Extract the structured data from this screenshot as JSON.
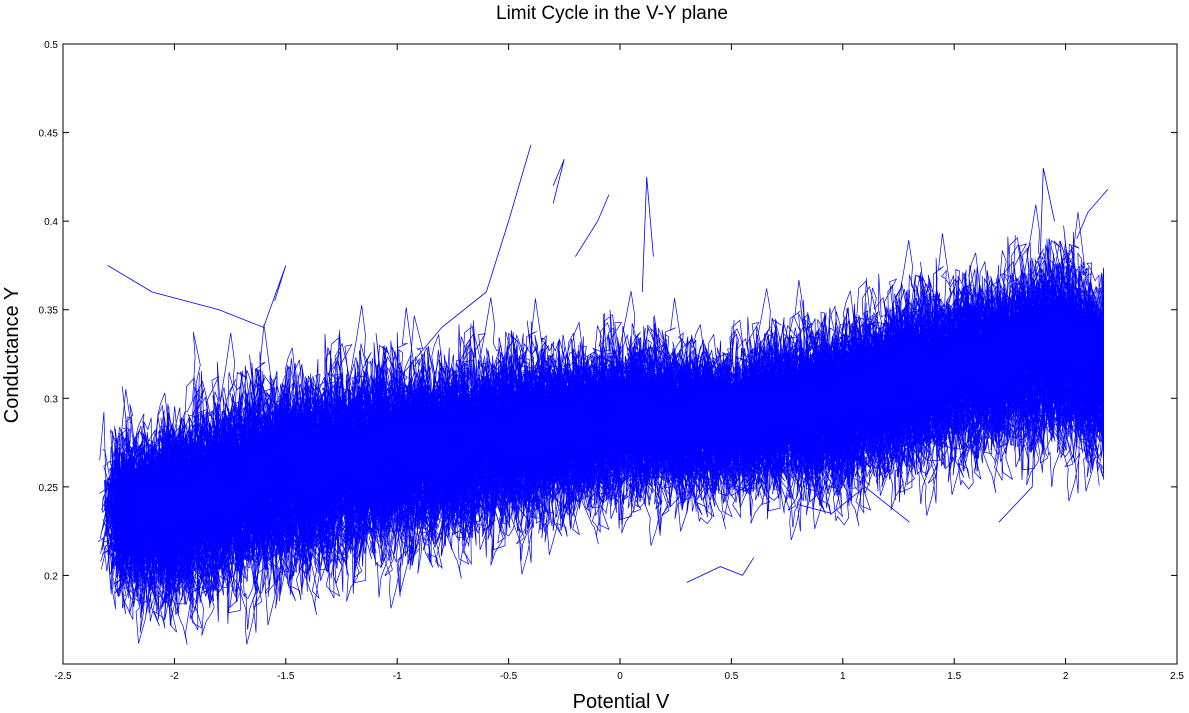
{
  "chart_data": {
    "type": "line",
    "title": "Limit Cycle in the V-Y plane",
    "xlabel": "Potential V",
    "ylabel": "Conductance Y",
    "xlim": [
      -2.5,
      2.5
    ],
    "ylim": [
      0.15,
      0.5
    ],
    "xticks": [
      "-2.5",
      "-2",
      "-1.5",
      "-1",
      "-0.5",
      "0",
      "0.5",
      "1",
      "1.5",
      "2",
      "2.5"
    ],
    "xtick_values": [
      -2.5,
      -2,
      -1.5,
      -1,
      -0.5,
      0,
      0.5,
      1,
      1.5,
      2,
      2.5
    ],
    "yticks": [
      "0.2",
      "0.25",
      "0.3",
      "0.35",
      "0.4",
      "0.45",
      "0.5"
    ],
    "ytick_values": [
      0.2,
      0.25,
      0.3,
      0.35,
      0.4,
      0.45,
      0.5
    ],
    "grid": false,
    "series": [
      {
        "color": "#0000ff",
        "description_points": {
          "x": [
            -2.3,
            -2.0,
            -1.5,
            -1.0,
            -0.5,
            0.0,
            0.5,
            1.0,
            1.5,
            2.0,
            2.15
          ],
          "y_center": [
            0.235,
            0.24,
            0.26,
            0.27,
            0.28,
            0.29,
            0.29,
            0.3,
            0.32,
            0.33,
            0.32
          ],
          "y_spread": [
            0.06,
            0.065,
            0.07,
            0.065,
            0.06,
            0.055,
            0.05,
            0.06,
            0.06,
            0.065,
            0.06
          ]
        },
        "outlier_traces": [
          {
            "x": [
              -2.3,
              -2.1,
              -1.8,
              -1.6,
              -1.5,
              -1.55
            ],
            "y": [
              0.375,
              0.36,
              0.35,
              0.34,
              0.375,
              0.355
            ]
          },
          {
            "x": [
              -1.0,
              -0.8,
              -0.6,
              -0.5,
              -0.4
            ],
            "y": [
              0.31,
              0.34,
              0.36,
              0.4,
              0.443
            ]
          },
          {
            "x": [
              -0.3,
              -0.25,
              -0.3
            ],
            "y": [
              0.41,
              0.435,
              0.42
            ]
          },
          {
            "x": [
              -0.2,
              -0.1,
              -0.05
            ],
            "y": [
              0.38,
              0.4,
              0.415
            ]
          },
          {
            "x": [
              0.1,
              0.12,
              0.15
            ],
            "y": [
              0.36,
              0.425,
              0.38
            ]
          },
          {
            "x": [
              0.3,
              0.45,
              0.55,
              0.6
            ],
            "y": [
              0.196,
              0.205,
              0.2,
              0.21
            ]
          },
          {
            "x": [
              0.8,
              0.95,
              1.1,
              1.3
            ],
            "y": [
              0.24,
              0.235,
              0.25,
              0.23
            ]
          },
          {
            "x": [
              1.7,
              1.85,
              1.9,
              1.95
            ],
            "y": [
              0.23,
              0.25,
              0.43,
              0.4
            ]
          },
          {
            "x": [
              2.05,
              2.1,
              2.19
            ],
            "y": [
              0.39,
              0.405,
              0.418
            ]
          }
        ]
      }
    ]
  }
}
